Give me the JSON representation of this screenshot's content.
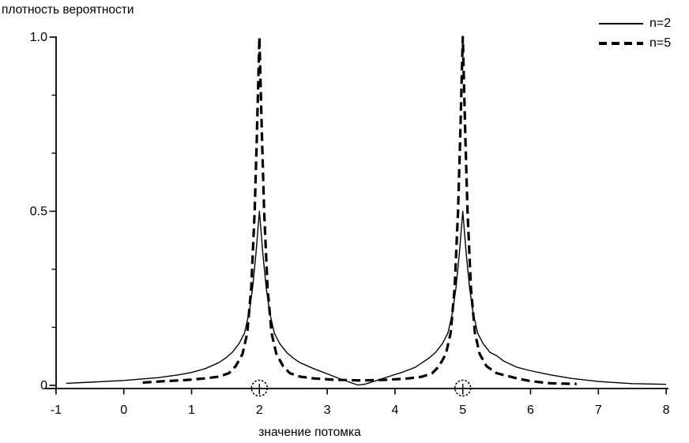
{
  "page": {
    "background": "#ffffff",
    "line_color": "#000000"
  },
  "chart_data": {
    "type": "line",
    "title": "",
    "ylabel": "плотность вероятности",
    "xlabel": "значение потомка",
    "grid": false,
    "x_axis": {
      "min": -1,
      "max": 8,
      "tick_values": [
        -1,
        0,
        1,
        2,
        3,
        4,
        5,
        6,
        7,
        8
      ],
      "tick_labels": [
        "-1",
        "0",
        "1",
        "2",
        "3",
        "4",
        "5",
        "6",
        "7",
        "8"
      ]
    },
    "y_axis": {
      "min": 0,
      "max": 1.0,
      "major_ticks": [
        {
          "value": 0,
          "label": "0"
        },
        {
          "value": 0.5,
          "label": "0.5"
        },
        {
          "value": 1.0,
          "label": "1.0"
        }
      ],
      "minor_tick_values": [
        0.1667,
        0.3333,
        0.6667,
        0.8333
      ]
    },
    "legend": {
      "position": "top-right",
      "entries": [
        {
          "label": "n=2",
          "style": "solid"
        },
        {
          "label": "n=5",
          "style": "dashed"
        }
      ]
    },
    "axis_markers": {
      "symbol": "circled-tick",
      "x_values": [
        2,
        5
      ]
    },
    "peaks": {
      "x": [
        2,
        5
      ],
      "n2_peak_height": 0.5,
      "n5_peak_height": 1.0
    },
    "series": [
      {
        "name": "n=2",
        "style": "solid",
        "points": [
          [
            -0.85,
            0.006
          ],
          [
            -0.5,
            0.009
          ],
          [
            0,
            0.014
          ],
          [
            0.5,
            0.022
          ],
          [
            0.8,
            0.03
          ],
          [
            1.0,
            0.037
          ],
          [
            1.2,
            0.048
          ],
          [
            1.4,
            0.065
          ],
          [
            1.5,
            0.078
          ],
          [
            1.6,
            0.095
          ],
          [
            1.7,
            0.12
          ],
          [
            1.78,
            0.15
          ],
          [
            1.85,
            0.21
          ],
          [
            1.9,
            0.28
          ],
          [
            1.95,
            0.38
          ],
          [
            2.0,
            0.5
          ],
          [
            2.05,
            0.38
          ],
          [
            2.1,
            0.28
          ],
          [
            2.15,
            0.21
          ],
          [
            2.22,
            0.15
          ],
          [
            2.3,
            0.12
          ],
          [
            2.4,
            0.095
          ],
          [
            2.5,
            0.078
          ],
          [
            2.6,
            0.065
          ],
          [
            2.8,
            0.048
          ],
          [
            3.0,
            0.033
          ],
          [
            3.2,
            0.018
          ],
          [
            3.35,
            0.008
          ],
          [
            3.45,
            0.001
          ],
          [
            3.55,
            0.003
          ],
          [
            3.7,
            0.012
          ],
          [
            3.9,
            0.025
          ],
          [
            4.1,
            0.037
          ],
          [
            4.3,
            0.052
          ],
          [
            4.5,
            0.078
          ],
          [
            4.6,
            0.095
          ],
          [
            4.7,
            0.12
          ],
          [
            4.78,
            0.15
          ],
          [
            4.85,
            0.21
          ],
          [
            4.9,
            0.28
          ],
          [
            4.95,
            0.38
          ],
          [
            5.0,
            0.5
          ],
          [
            5.05,
            0.38
          ],
          [
            5.1,
            0.28
          ],
          [
            5.15,
            0.21
          ],
          [
            5.22,
            0.15
          ],
          [
            5.3,
            0.12
          ],
          [
            5.4,
            0.095
          ],
          [
            5.5,
            0.085
          ],
          [
            5.6,
            0.07
          ],
          [
            5.8,
            0.052
          ],
          [
            6.0,
            0.042
          ],
          [
            6.3,
            0.03
          ],
          [
            6.6,
            0.02
          ],
          [
            7.0,
            0.011
          ],
          [
            7.5,
            0.005
          ],
          [
            8.0,
            0.003
          ]
        ]
      },
      {
        "name": "n=5",
        "style": "dashed",
        "points": [
          [
            0.28,
            0.008
          ],
          [
            0.6,
            0.012
          ],
          [
            0.9,
            0.015
          ],
          [
            1.2,
            0.02
          ],
          [
            1.4,
            0.025
          ],
          [
            1.55,
            0.035
          ],
          [
            1.65,
            0.055
          ],
          [
            1.75,
            0.09
          ],
          [
            1.82,
            0.15
          ],
          [
            1.88,
            0.28
          ],
          [
            1.93,
            0.5
          ],
          [
            1.96,
            0.7
          ],
          [
            2.0,
            1.0
          ],
          [
            2.04,
            0.7
          ],
          [
            2.07,
            0.5
          ],
          [
            2.12,
            0.28
          ],
          [
            2.18,
            0.15
          ],
          [
            2.25,
            0.09
          ],
          [
            2.35,
            0.055
          ],
          [
            2.45,
            0.035
          ],
          [
            2.6,
            0.025
          ],
          [
            2.8,
            0.02
          ],
          [
            3.1,
            0.016
          ],
          [
            3.5,
            0.014
          ],
          [
            3.9,
            0.016
          ],
          [
            4.2,
            0.02
          ],
          [
            4.4,
            0.025
          ],
          [
            4.55,
            0.035
          ],
          [
            4.65,
            0.055
          ],
          [
            4.75,
            0.09
          ],
          [
            4.82,
            0.15
          ],
          [
            4.88,
            0.28
          ],
          [
            4.93,
            0.5
          ],
          [
            4.96,
            0.7
          ],
          [
            5.0,
            1.0
          ],
          [
            5.04,
            0.7
          ],
          [
            5.07,
            0.5
          ],
          [
            5.12,
            0.28
          ],
          [
            5.18,
            0.15
          ],
          [
            5.25,
            0.09
          ],
          [
            5.35,
            0.055
          ],
          [
            5.5,
            0.035
          ],
          [
            5.6,
            0.03
          ],
          [
            5.8,
            0.02
          ],
          [
            6.0,
            0.012
          ],
          [
            6.3,
            0.006
          ],
          [
            6.68,
            0.004
          ]
        ]
      }
    ]
  }
}
